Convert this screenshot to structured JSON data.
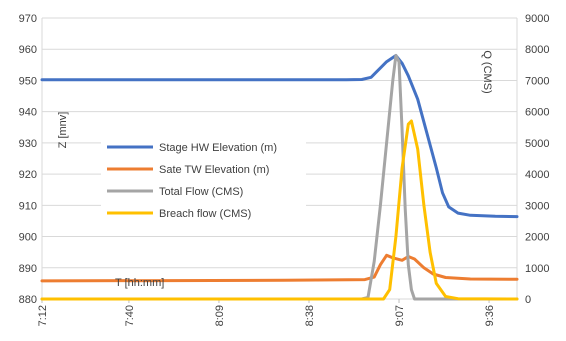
{
  "chart_data": {
    "type": "line",
    "title": "",
    "ylabel": "Z [mnv]",
    "y2label": "Q (CMS)",
    "xlabel": "T [hh:mm]",
    "ylim": [
      880,
      970
    ],
    "y2lim": [
      0,
      9000
    ],
    "y_ticks": [
      880,
      890,
      900,
      910,
      920,
      930,
      940,
      950,
      960,
      970
    ],
    "y2_ticks": [
      0,
      1000,
      2000,
      3000,
      4000,
      5000,
      6000,
      7000,
      8000,
      9000
    ],
    "x_range": [
      "7:12",
      "9:45"
    ],
    "x_ticks": [
      "7:12",
      "7:40",
      "8:09",
      "8:38",
      "9:07",
      "9:36"
    ],
    "grid": true,
    "legend_position": "left",
    "series": [
      {
        "name": "Stage HW Elevation (m)",
        "axis": "left",
        "color": "#4472C4",
        "points": [
          [
            "7:12",
            950.2
          ],
          [
            "8:00",
            950.2
          ],
          [
            "8:50",
            950.2
          ],
          [
            "8:55",
            950.3
          ],
          [
            "8:58",
            951.0
          ],
          [
            "9:00",
            953.0
          ],
          [
            "9:03",
            956.0
          ],
          [
            "9:06",
            958.0
          ],
          [
            "9:08",
            955.5
          ],
          [
            "9:10",
            951.5
          ],
          [
            "9:13",
            944.0
          ],
          [
            "9:16",
            933.0
          ],
          [
            "9:19",
            922.0
          ],
          [
            "9:21",
            914.0
          ],
          [
            "9:23",
            909.5
          ],
          [
            "9:26",
            907.5
          ],
          [
            "9:30",
            906.8
          ],
          [
            "9:38",
            906.5
          ],
          [
            "9:45",
            906.4
          ]
        ]
      },
      {
        "name": "Sate TW Elevation (m)",
        "axis": "left",
        "color": "#ED7D31",
        "points": [
          [
            "7:12",
            885.8
          ],
          [
            "8:30",
            886.0
          ],
          [
            "8:56",
            886.2
          ],
          [
            "8:59",
            887.0
          ],
          [
            "9:01",
            891.0
          ],
          [
            "9:03",
            894.0
          ],
          [
            "9:05",
            893.2
          ],
          [
            "9:08",
            892.4
          ],
          [
            "9:10",
            893.6
          ],
          [
            "9:12",
            892.8
          ],
          [
            "9:15",
            890.0
          ],
          [
            "9:18",
            888.0
          ],
          [
            "9:22",
            886.9
          ],
          [
            "9:30",
            886.4
          ],
          [
            "9:45",
            886.3
          ]
        ]
      },
      {
        "name": "Total Flow (CMS)",
        "axis": "right",
        "color": "#A5A5A5",
        "points": [
          [
            "7:12",
            0
          ],
          [
            "8:55",
            0
          ],
          [
            "8:57",
            50
          ],
          [
            "8:59",
            1200
          ],
          [
            "9:01",
            3000
          ],
          [
            "9:03",
            5000
          ],
          [
            "9:05",
            7000
          ],
          [
            "9:06",
            7800
          ],
          [
            "9:07",
            7600
          ],
          [
            "9:08",
            5400
          ],
          [
            "9:09",
            2900
          ],
          [
            "9:10",
            1100
          ],
          [
            "9:11",
            300
          ],
          [
            "9:12",
            0
          ],
          [
            "9:45",
            0
          ]
        ]
      },
      {
        "name": "Breach flow (CMS)",
        "axis": "right",
        "color": "#FFC000",
        "points": [
          [
            "7:12",
            0
          ],
          [
            "9:02",
            0
          ],
          [
            "9:04",
            300
          ],
          [
            "9:06",
            2000
          ],
          [
            "9:08",
            4200
          ],
          [
            "9:10",
            5600
          ],
          [
            "9:11",
            5700
          ],
          [
            "9:13",
            4800
          ],
          [
            "9:15",
            3000
          ],
          [
            "9:17",
            1500
          ],
          [
            "9:19",
            500
          ],
          [
            "9:22",
            80
          ],
          [
            "9:26",
            10
          ],
          [
            "9:45",
            0
          ]
        ]
      }
    ]
  }
}
